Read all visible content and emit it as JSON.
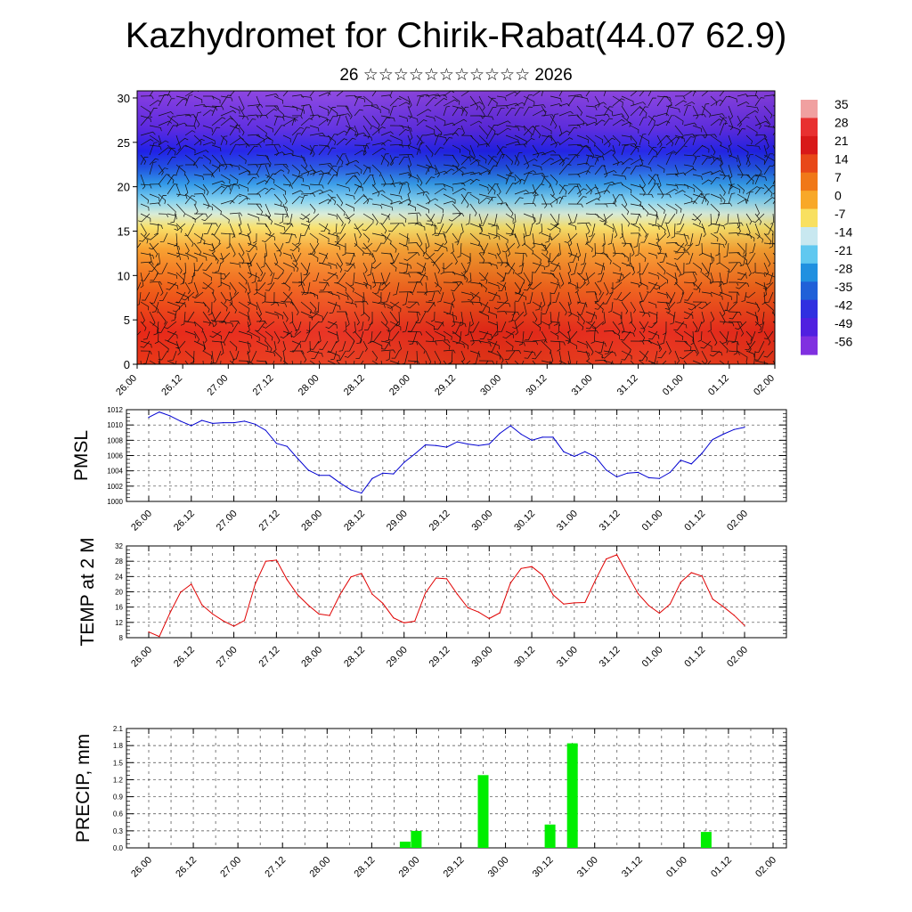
{
  "title": "Kazhydromet for Chirik-Rabat(44.07 62.9)",
  "subtitle": "26 ☆☆☆☆☆☆☆☆☆☆☆ 2026",
  "chart_data": [
    {
      "type": "heatmap",
      "name": "temperature-cross-section",
      "ylabel": "",
      "yticks": [
        0,
        5,
        10,
        15,
        20,
        25,
        30
      ],
      "ylim": [
        0,
        30.8
      ],
      "xticks": [
        "26.00",
        "26.12",
        "27.00",
        "27.12",
        "28.00",
        "28.12",
        "29.00",
        "29.12",
        "30.00",
        "30.12",
        "31.00",
        "31.12",
        "01.00",
        "01.12",
        "02.00"
      ],
      "colorbar": {
        "labels": [
          "35",
          "28",
          "21",
          "14",
          "7",
          "0",
          "-7",
          "-14",
          "-21",
          "-28",
          "-35",
          "-42",
          "-49",
          "-56"
        ],
        "colors": [
          "#f0a0a0",
          "#e83030",
          "#d81818",
          "#e84818",
          "#f07818",
          "#f8a828",
          "#f8e060",
          "#c8e8f0",
          "#60c8f0",
          "#2090e0",
          "#2060d8",
          "#3030e0",
          "#5020e0",
          "#8030e0"
        ]
      },
      "overlay": "wind barbs"
    },
    {
      "type": "line",
      "name": "pmsl",
      "ylabel": "PMSL",
      "ylim": [
        1000,
        1012
      ],
      "yticks": [
        1000,
        1002,
        1004,
        1006,
        1008,
        1010,
        1012
      ],
      "xticks": [
        "26.00",
        "26.12",
        "27.00",
        "27.12",
        "28.00",
        "28.12",
        "29.00",
        "29.12",
        "30.00",
        "30.12",
        "31.00",
        "31.12",
        "01.00",
        "01.12",
        "02.00"
      ],
      "x": [
        0,
        3,
        6,
        9,
        12,
        15,
        18,
        21,
        24,
        27,
        30,
        33,
        36,
        39,
        42,
        45,
        48,
        51,
        54,
        57,
        60,
        63,
        66,
        69,
        72,
        75,
        78,
        81,
        84,
        87,
        90,
        93,
        96,
        99,
        102,
        105,
        108,
        111,
        114,
        117,
        120,
        123,
        126,
        129,
        132,
        135,
        138,
        141,
        144,
        147,
        150,
        153,
        156,
        159,
        162,
        165,
        168
      ],
      "values": [
        1011.0,
        1011.7,
        1011.2,
        1010.5,
        1009.9,
        1010.6,
        1010.2,
        1010.3,
        1010.3,
        1010.5,
        1010.1,
        1009.3,
        1007.6,
        1007.2,
        1005.6,
        1004.1,
        1003.4,
        1003.4,
        1002.4,
        1001.5,
        1001.1,
        1003.0,
        1003.7,
        1003.6,
        1005.1,
        1006.2,
        1007.4,
        1007.3,
        1007.1,
        1007.8,
        1007.5,
        1007.3,
        1007.5,
        1008.9,
        1009.9,
        1008.8,
        1008.0,
        1008.4,
        1008.4,
        1006.5,
        1005.9,
        1006.5,
        1005.8,
        1004.1,
        1003.2,
        1003.7,
        1003.8,
        1003.1,
        1003.0,
        1003.8,
        1005.4,
        1004.9,
        1006.3,
        1008.1,
        1008.8,
        1009.4,
        1009.7
      ],
      "color": "#0000d0"
    },
    {
      "type": "line",
      "name": "temp-2m",
      "ylabel": "TEMP at 2 M",
      "ylim": [
        8,
        32
      ],
      "yticks": [
        8,
        12,
        16,
        20,
        24,
        28,
        32
      ],
      "xticks": [
        "26.00",
        "26.12",
        "27.00",
        "27.12",
        "28.00",
        "28.12",
        "29.00",
        "29.12",
        "30.00",
        "30.12",
        "31.00",
        "31.12",
        "01.00",
        "01.12",
        "02.00"
      ],
      "x": [
        0,
        3,
        6,
        9,
        12,
        15,
        18,
        21,
        24,
        27,
        30,
        33,
        36,
        39,
        42,
        45,
        48,
        51,
        54,
        57,
        60,
        63,
        66,
        69,
        72,
        75,
        78,
        81,
        84,
        87,
        90,
        93,
        96,
        99,
        102,
        105,
        108,
        111,
        114,
        117,
        120,
        123,
        126,
        129,
        132,
        135,
        138,
        141,
        144,
        147,
        150,
        153,
        156,
        159,
        162,
        165,
        168
      ],
      "values": [
        9.5,
        8.3,
        14.5,
        19.9,
        22.0,
        16.6,
        14.2,
        12.4,
        11.0,
        12.5,
        22.0,
        28.0,
        28.3,
        23.2,
        19.2,
        16.5,
        14.2,
        13.8,
        19.4,
        23.9,
        24.8,
        19.4,
        17.0,
        13.2,
        11.9,
        12.3,
        19.7,
        23.6,
        23.4,
        19.4,
        15.8,
        14.7,
        13.0,
        14.5,
        22.3,
        26.1,
        26.6,
        24.4,
        19.2,
        16.8,
        17.1,
        17.2,
        23.2,
        28.6,
        29.7,
        24.5,
        19.5,
        16.4,
        14.4,
        16.8,
        22.5,
        25.0,
        24.1,
        18.1,
        16.1,
        13.9,
        11.2
      ],
      "color": "#e00000"
    },
    {
      "type": "bar",
      "name": "precip",
      "ylabel": "PRECIP, mm",
      "ylim": [
        0,
        2.1
      ],
      "yticks": [
        "0.0",
        "0.3",
        "0.6",
        "0.9",
        "1.2",
        "1.5",
        "1.8",
        "2.1"
      ],
      "xticks": [
        "26.00",
        "26.12",
        "27.00",
        "27.12",
        "28.00",
        "28.12",
        "29.00",
        "29.12",
        "30.00",
        "30.12",
        "31.00",
        "31.12",
        "01.00",
        "01.12",
        "02.00"
      ],
      "x": [
        69,
        72,
        90,
        108,
        114,
        150
      ],
      "values": [
        0.11,
        0.3,
        1.28,
        0.41,
        1.84,
        0.28
      ],
      "color": "#00ee00"
    }
  ]
}
